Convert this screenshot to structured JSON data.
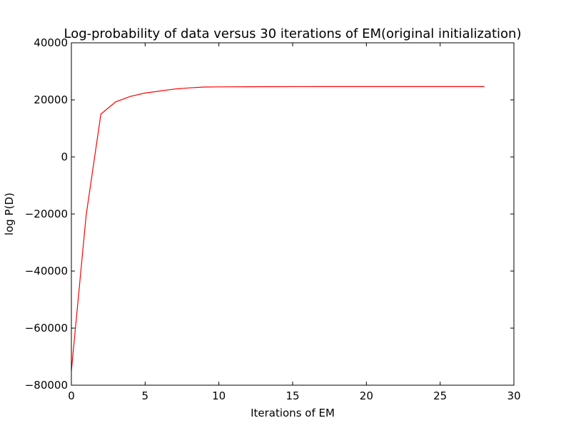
{
  "chart_data": {
    "type": "line",
    "title": "Log-probability of data versus 30 iterations of EM(original initialization)",
    "xlabel": "Iterations of EM",
    "ylabel": "log P(D)",
    "xlim": [
      0,
      30
    ],
    "ylim": [
      -80000,
      40000
    ],
    "xticks": [
      0,
      5,
      10,
      15,
      20,
      25,
      30
    ],
    "xtick_labels": [
      "0",
      "5",
      "10",
      "15",
      "20",
      "25",
      "30"
    ],
    "yticks": [
      -80000,
      -60000,
      -40000,
      -20000,
      0,
      20000,
      40000
    ],
    "ytick_labels": [
      "−80000",
      "−60000",
      "−40000",
      "−20000",
      "0",
      "20000",
      "40000"
    ],
    "grid": false,
    "series": [
      {
        "color": "#ff0000",
        "x": [
          0,
          1,
          2,
          3,
          4,
          5,
          6,
          7,
          8,
          9,
          10,
          11,
          12,
          13,
          14,
          15,
          16,
          17,
          18,
          19,
          20,
          21,
          22,
          23,
          24,
          25,
          26,
          27,
          28
        ],
        "y": [
          -75000,
          -20500,
          15000,
          19300,
          21200,
          22400,
          23100,
          23800,
          24200,
          24500,
          24550,
          24580,
          24600,
          24620,
          24630,
          24640,
          24640,
          24650,
          24650,
          24650,
          24650,
          24650,
          24650,
          24650,
          24650,
          24650,
          24650,
          24650,
          24650
        ]
      }
    ]
  }
}
